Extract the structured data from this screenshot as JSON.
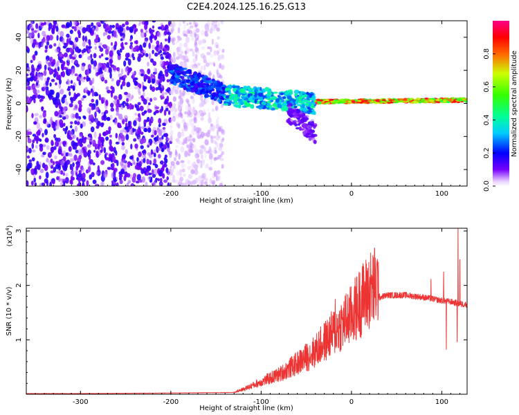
{
  "figure": {
    "title": "C2E4.2024.125.16.25.G13"
  },
  "chart_data": [
    {
      "type": "heatmap",
      "title": "C2E4.2024.125.16.25.G13",
      "xlabel": "Height of straight line (km)",
      "ylabel": "Frequency (Hz)",
      "xlim": [
        -360,
        128
      ],
      "ylim": [
        -50,
        50
      ],
      "xticks": [
        -300,
        -200,
        -100,
        0,
        100
      ],
      "xtick_labels": [
        "-300",
        "-200",
        "-100",
        "0",
        "100"
      ],
      "yticks": [
        -40,
        -20,
        0,
        20,
        40
      ],
      "ytick_labels": [
        "-40",
        "-20",
        "0",
        "20",
        "40"
      ],
      "colorbar": {
        "label": "Normalized spectral amplitude",
        "range": [
          0.0,
          1.0
        ],
        "ticks": [
          0.0,
          0.2,
          0.4,
          0.6,
          0.8
        ],
        "tick_labels": [
          "0.0",
          "0.2",
          "0.4",
          "0.6",
          "0.8"
        ]
      },
      "regions": [
        {
          "name": "dense noise",
          "x_range": [
            -360,
            -200
          ],
          "freq_range": [
            -50,
            50
          ],
          "amplitude": 0.15
        },
        {
          "name": "sparse noise",
          "x_range": [
            -200,
            -142
          ],
          "freq_range": [
            -50,
            50
          ],
          "amplitude": 0.05
        },
        {
          "name": "signal onset",
          "x_range": [
            -200,
            -140
          ],
          "center_freq": [
            18,
            6
          ],
          "amplitude": 0.25
        },
        {
          "name": "broadband signal",
          "x_range": [
            -140,
            -40
          ],
          "center_freq": [
            5,
            0
          ],
          "amplitude": 0.4
        },
        {
          "name": "downward branch",
          "x_range": [
            -70,
            -40
          ],
          "center_freq": [
            -5,
            -18
          ],
          "amplitude": 0.12
        },
        {
          "name": "narrowband line",
          "x_range": [
            -40,
            128
          ],
          "center_freq": [
            1,
            2
          ],
          "amplitude": 0.85
        }
      ],
      "grid": false
    },
    {
      "type": "line",
      "xlabel": "Height of straight line (km)",
      "ylabel": "SNR (10 * v/v)",
      "y_multiplier_label": "(x10",
      "y_multiplier_exponent": "4",
      "xlim": [
        -360,
        128
      ],
      "ylim": [
        0,
        3.05
      ],
      "xticks": [
        -300,
        -200,
        -100,
        0,
        100
      ],
      "xtick_labels": [
        "-300",
        "-200",
        "-100",
        "0",
        "100"
      ],
      "yticks": [
        1,
        2,
        3
      ],
      "ytick_labels": [
        "1",
        "2",
        "3"
      ],
      "color": "#ee3333",
      "envelope": {
        "x": [
          -360,
          -300,
          -200,
          -130,
          -120,
          -100,
          -80,
          -60,
          -40,
          -20,
          0,
          10,
          20,
          30,
          40,
          60,
          80,
          100,
          110,
          120,
          128
        ],
        "y": [
          0.01,
          0.01,
          0.02,
          0.03,
          0.08,
          0.2,
          0.32,
          0.5,
          0.7,
          1.0,
          1.28,
          1.5,
          1.68,
          1.78,
          1.82,
          1.82,
          1.78,
          1.72,
          1.7,
          1.66,
          1.65
        ]
      },
      "spikes": [
        {
          "x": -18,
          "y": 1.75
        },
        {
          "x": -10,
          "y": 1.38
        },
        {
          "x": 12,
          "y": 2.35
        },
        {
          "x": 88,
          "y": 2.12
        },
        {
          "x": 102,
          "y": 2.25
        },
        {
          "x": 105,
          "y": 0.82
        },
        {
          "x": 117,
          "y": 0.96
        },
        {
          "x": 118,
          "y": 3.05
        },
        {
          "x": 120,
          "y": 2.48
        }
      ],
      "grid": false
    }
  ]
}
